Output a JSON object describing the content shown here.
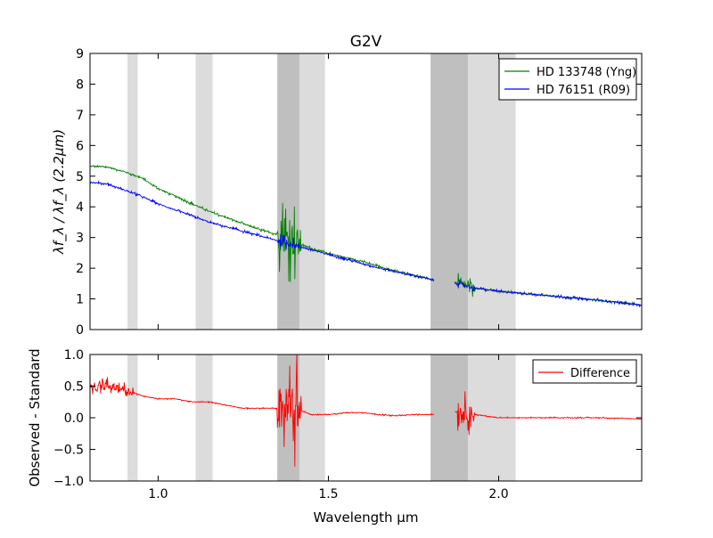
{
  "chart_data": [
    {
      "type": "line",
      "title": "G2V",
      "xlabel": "",
      "ylabel": "λf_λ / λf_λ (2.2μm)",
      "xlim": [
        0.8,
        2.42
      ],
      "ylim": [
        0,
        9
      ],
      "yticks": [
        0,
        1,
        2,
        3,
        4,
        5,
        6,
        7,
        8,
        9
      ],
      "xticks": [
        1.0,
        1.5,
        2.0
      ],
      "show_x_tick_labels": false,
      "legend_position": "top-right",
      "shaded_bands": [
        {
          "from": 0.91,
          "to": 0.94,
          "color": "#dcdcdc"
        },
        {
          "from": 1.11,
          "to": 1.16,
          "color": "#dcdcdc"
        },
        {
          "from": 1.35,
          "to": 1.415,
          "color": "#bfbfbf"
        },
        {
          "from": 1.415,
          "to": 1.49,
          "color": "#dcdcdc"
        },
        {
          "from": 1.8,
          "to": 1.91,
          "color": "#bfbfbf"
        },
        {
          "from": 1.91,
          "to": 2.05,
          "color": "#dcdcdc"
        }
      ],
      "series": [
        {
          "name": "HD 133748 (Yng)",
          "color": "#008000",
          "points": [
            [
              0.8,
              5.32
            ],
            [
              0.85,
              5.3
            ],
            [
              0.9,
              5.15
            ],
            [
              0.95,
              4.95
            ],
            [
              1.0,
              4.6
            ],
            [
              1.05,
              4.35
            ],
            [
              1.1,
              4.1
            ],
            [
              1.15,
              3.85
            ],
            [
              1.2,
              3.65
            ],
            [
              1.25,
              3.45
            ],
            [
              1.3,
              3.25
            ],
            [
              1.35,
              3.1
            ],
            [
              1.4,
              2.85
            ],
            [
              1.45,
              2.65
            ],
            [
              1.5,
              2.48
            ],
            [
              1.55,
              2.35
            ],
            [
              1.6,
              2.22
            ],
            [
              1.65,
              2.05
            ],
            [
              1.7,
              1.9
            ],
            [
              1.75,
              1.78
            ],
            [
              1.8,
              1.65
            ],
            [
              1.88,
              1.5
            ],
            [
              1.93,
              1.35
            ],
            [
              2.0,
              1.25
            ],
            [
              2.1,
              1.15
            ],
            [
              2.2,
              1.05
            ],
            [
              2.3,
              0.95
            ],
            [
              2.42,
              0.8
            ]
          ],
          "noisy_ranges": [
            {
              "from": 1.35,
              "to": 1.42,
              "amplitude": 1.4
            },
            {
              "from": 1.88,
              "to": 1.93,
              "amplitude": 0.35
            }
          ],
          "gaps": [
            [
              1.81,
              1.87
            ]
          ]
        },
        {
          "name": "HD 76151 (R09)",
          "color": "#0000ff",
          "points": [
            [
              0.8,
              4.8
            ],
            [
              0.85,
              4.75
            ],
            [
              0.9,
              4.55
            ],
            [
              0.95,
              4.35
            ],
            [
              1.0,
              4.1
            ],
            [
              1.05,
              3.9
            ],
            [
              1.1,
              3.7
            ],
            [
              1.15,
              3.5
            ],
            [
              1.2,
              3.35
            ],
            [
              1.25,
              3.2
            ],
            [
              1.3,
              3.05
            ],
            [
              1.35,
              2.9
            ],
            [
              1.4,
              2.75
            ],
            [
              1.45,
              2.6
            ],
            [
              1.5,
              2.45
            ],
            [
              1.55,
              2.3
            ],
            [
              1.6,
              2.15
            ],
            [
              1.65,
              2.0
            ],
            [
              1.7,
              1.88
            ],
            [
              1.75,
              1.76
            ],
            [
              1.8,
              1.63
            ],
            [
              1.88,
              1.5
            ],
            [
              1.93,
              1.35
            ],
            [
              2.0,
              1.25
            ],
            [
              2.1,
              1.15
            ],
            [
              2.2,
              1.05
            ],
            [
              2.3,
              0.95
            ],
            [
              2.42,
              0.8
            ]
          ],
          "noisy_ranges": [
            {
              "from": 1.35,
              "to": 1.42,
              "amplitude": 0.25
            },
            {
              "from": 1.88,
              "to": 1.93,
              "amplitude": 0.15
            }
          ],
          "gaps": [
            [
              1.81,
              1.87
            ]
          ]
        }
      ]
    },
    {
      "type": "line",
      "title": "",
      "xlabel": "Wavelength μm",
      "ylabel": "Observed - Standard",
      "xlim": [
        0.8,
        2.42
      ],
      "ylim": [
        -1.0,
        1.0
      ],
      "yticks": [
        -1.0,
        -0.5,
        0.0,
        0.5,
        1.0
      ],
      "ytick_labels": [
        "−1.0",
        "−0.5",
        "0.0",
        "0.5",
        "1.0"
      ],
      "xticks": [
        1.0,
        1.5,
        2.0
      ],
      "xtick_labels": [
        "1.0",
        "1.5",
        "2.0"
      ],
      "legend_position": "top-right",
      "shaded_bands": [
        {
          "from": 0.91,
          "to": 0.94,
          "color": "#dcdcdc"
        },
        {
          "from": 1.11,
          "to": 1.16,
          "color": "#dcdcdc"
        },
        {
          "from": 1.35,
          "to": 1.415,
          "color": "#bfbfbf"
        },
        {
          "from": 1.415,
          "to": 1.49,
          "color": "#dcdcdc"
        },
        {
          "from": 1.8,
          "to": 1.91,
          "color": "#bfbfbf"
        },
        {
          "from": 1.91,
          "to": 2.05,
          "color": "#dcdcdc"
        }
      ],
      "series": [
        {
          "name": "Difference",
          "color": "#ff0000",
          "points": [
            [
              0.8,
              0.45
            ],
            [
              0.85,
              0.5
            ],
            [
              0.9,
              0.45
            ],
            [
              0.95,
              0.35
            ],
            [
              1.0,
              0.3
            ],
            [
              1.05,
              0.3
            ],
            [
              1.1,
              0.25
            ],
            [
              1.15,
              0.25
            ],
            [
              1.2,
              0.2
            ],
            [
              1.25,
              0.15
            ],
            [
              1.3,
              0.15
            ],
            [
              1.35,
              0.15
            ],
            [
              1.4,
              0.15
            ],
            [
              1.45,
              0.05
            ],
            [
              1.5,
              0.05
            ],
            [
              1.55,
              0.08
            ],
            [
              1.6,
              0.08
            ],
            [
              1.65,
              0.05
            ],
            [
              1.7,
              0.03
            ],
            [
              1.75,
              0.05
            ],
            [
              1.8,
              0.05
            ],
            [
              1.88,
              0.1
            ],
            [
              1.93,
              0.05
            ],
            [
              2.0,
              0.0
            ],
            [
              2.1,
              0.0
            ],
            [
              2.2,
              0.0
            ],
            [
              2.3,
              0.0
            ],
            [
              2.42,
              -0.02
            ]
          ],
          "noisy_ranges": [
            {
              "from": 0.8,
              "to": 0.93,
              "amplitude": 0.15
            },
            {
              "from": 1.35,
              "to": 1.42,
              "amplitude": 0.95
            },
            {
              "from": 1.88,
              "to": 1.93,
              "amplitude": 0.35
            }
          ],
          "gaps": [
            [
              1.81,
              1.87
            ]
          ]
        }
      ]
    }
  ]
}
